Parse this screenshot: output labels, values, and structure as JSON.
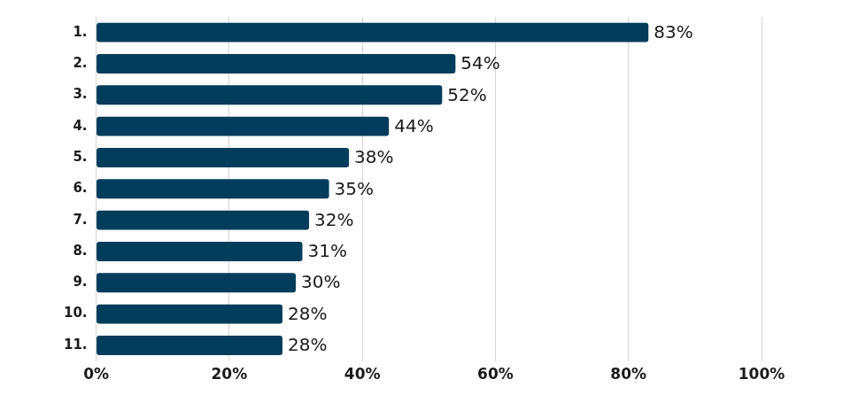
{
  "chart_data": {
    "type": "bar",
    "orientation": "horizontal",
    "categories": [
      "1.",
      "2.",
      "3.",
      "4.",
      "5.",
      "6.",
      "7.",
      "8.",
      "9.",
      "10.",
      "11."
    ],
    "values": [
      83,
      54,
      52,
      44,
      38,
      35,
      32,
      31,
      30,
      28,
      28
    ],
    "value_labels": [
      "83%",
      "54%",
      "52%",
      "44%",
      "38%",
      "35%",
      "32%",
      "31%",
      "30%",
      "28%",
      "28%"
    ],
    "color": "#023d5b",
    "xlim": [
      0,
      100
    ],
    "xticks": [
      {
        "value": 0,
        "label": "0%"
      },
      {
        "value": 20,
        "label": "20%"
      },
      {
        "value": 40,
        "label": "40%"
      },
      {
        "value": 60,
        "label": "60%"
      },
      {
        "value": 80,
        "label": "80%"
      },
      {
        "value": 100,
        "label": "100%"
      }
    ],
    "grid": true,
    "data_labels": true
  }
}
